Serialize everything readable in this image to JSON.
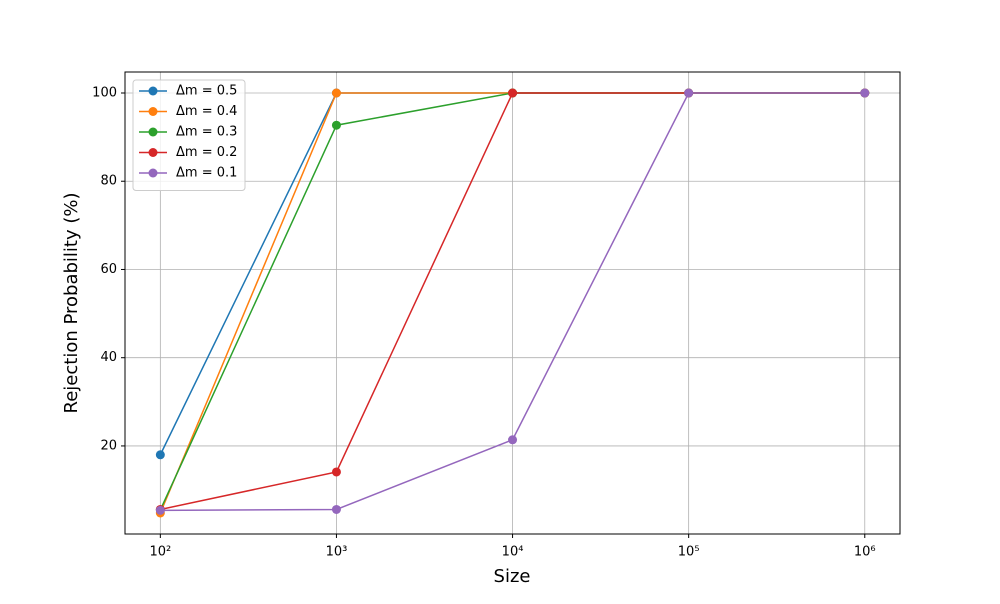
{
  "chart_data": {
    "type": "line",
    "xlabel": "Size",
    "ylabel": "Rejection Probability (%)",
    "x": [
      100,
      1000,
      10000,
      100000,
      1000000
    ],
    "series": [
      {
        "name": "Δm = 0.5",
        "color": "#1f77b4",
        "values": [
          18,
          100,
          100,
          100,
          100
        ]
      },
      {
        "name": "Δm = 0.4",
        "color": "#ff7f0e",
        "values": [
          4.8,
          100,
          100,
          100,
          100
        ]
      },
      {
        "name": "Δm = 0.3",
        "color": "#2ca02c",
        "values": [
          5.5,
          92.7,
          100,
          100,
          100
        ]
      },
      {
        "name": "Δm = 0.2",
        "color": "#d62728",
        "values": [
          5.6,
          14.1,
          100,
          100,
          100
        ]
      },
      {
        "name": "Δm = 0.1",
        "color": "#9467bd",
        "values": [
          5.4,
          5.6,
          21.4,
          100,
          100
        ]
      }
    ],
    "xscale": "log",
    "xlim": [
      63,
      1585000
    ],
    "xticks": [
      {
        "value": 100,
        "label": "10²"
      },
      {
        "value": 1000,
        "label": "10³"
      },
      {
        "value": 10000,
        "label": "10⁴"
      },
      {
        "value": 100000,
        "label": "10⁵"
      },
      {
        "value": 1000000,
        "label": "10⁶"
      }
    ],
    "ylim": [
      0.04,
      104.76
    ],
    "yticks": [
      20,
      40,
      60,
      80,
      100
    ],
    "grid": true,
    "legend": "upper left"
  }
}
